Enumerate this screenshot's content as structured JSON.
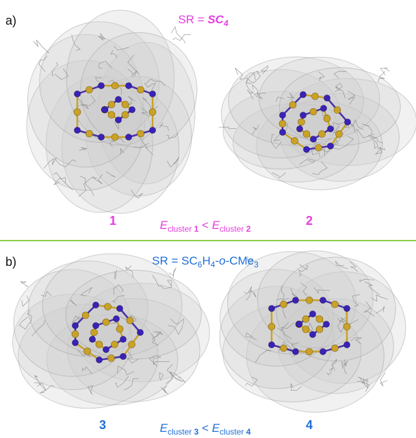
{
  "panels": [
    {
      "label": "a)",
      "formula": [
        "SR = ",
        "SC",
        "4"
      ],
      "compounds": [
        "1",
        "2"
      ],
      "relation": [
        "E",
        "cluster ",
        "1",
        " < ",
        "E",
        "cluster ",
        "2"
      ]
    },
    {
      "label": "b)",
      "formula": [
        "SR = SC",
        "6",
        "H",
        "4",
        "-",
        "o",
        "-CMe",
        "3"
      ],
      "compounds": [
        "3",
        "4"
      ],
      "relation": [
        "E",
        "cluster ",
        "3",
        " < ",
        "E",
        "cluster ",
        "4"
      ]
    }
  ]
}
